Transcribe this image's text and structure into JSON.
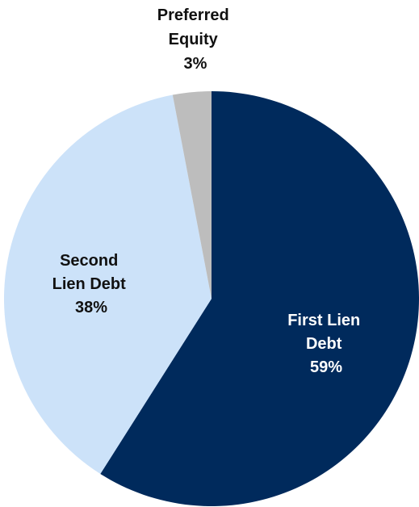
{
  "chart_data": {
    "type": "pie",
    "title": "",
    "start": "12 o'clock",
    "direction": "clockwise",
    "legend": "none",
    "slices": [
      {
        "label_lines": [
          "First Lien",
          "Debt"
        ],
        "percent_label": "59%",
        "value": 59,
        "color": "#002a5c",
        "label_color": "#ffffff"
      },
      {
        "label_lines": [
          "Second",
          "Lien Debt"
        ],
        "percent_label": "38%",
        "value": 38,
        "color": "#cce2f9",
        "label_color": "#111111"
      },
      {
        "label_lines": [
          "Preferred",
          "Equity"
        ],
        "percent_label": "3%",
        "value": 3,
        "color": "#bdbdbd",
        "label_color": "#111111"
      }
    ]
  }
}
